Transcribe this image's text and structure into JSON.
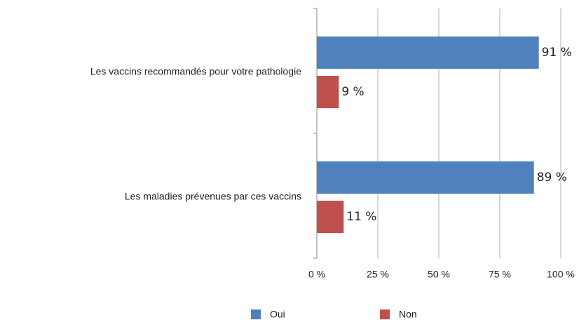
{
  "chart_data": {
    "type": "bar",
    "orientation": "horizontal",
    "categories": [
      "Les vaccins recommandés pour votre pathologie",
      "Les maladies prévenues par ces vaccins"
    ],
    "series": [
      {
        "name": "Oui",
        "color": "#4f81bd",
        "values": [
          91,
          89
        ],
        "value_labels": [
          "91 %",
          "89 %"
        ]
      },
      {
        "name": "Non",
        "color": "#c0504d",
        "values": [
          9,
          11
        ],
        "value_labels": [
          "9 %",
          "11 %"
        ]
      }
    ],
    "xlim": [
      0,
      100
    ],
    "xticks": [
      {
        "value": 0,
        "label": "0 %"
      },
      {
        "value": 25,
        "label": "25 %"
      },
      {
        "value": 50,
        "label": "50 %"
      },
      {
        "value": 75,
        "label": "75 %"
      },
      {
        "value": 100,
        "label": "100 %"
      }
    ],
    "grid": true
  }
}
